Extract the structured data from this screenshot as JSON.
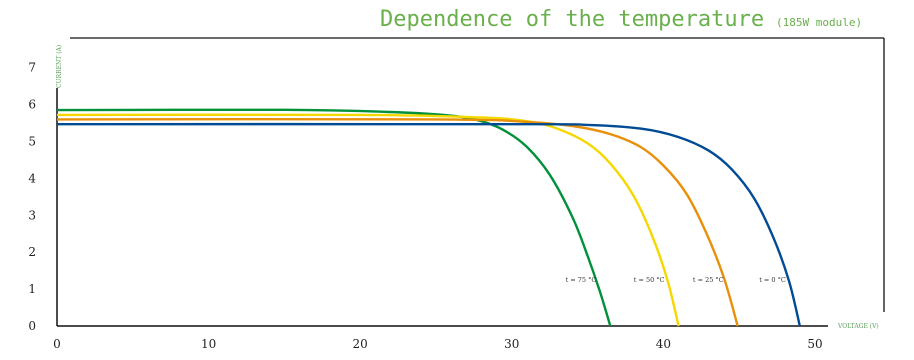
{
  "title": "Dependence of the temperature",
  "subtitle": "(185W module)",
  "colors": {
    "title": "#6ab04c",
    "axis_label": "#5aa05a",
    "frame": "#111111",
    "t75": "#00913a",
    "t50": "#f5d800",
    "t25": "#e8900a",
    "t0": "#004b93"
  },
  "chart_data": {
    "type": "line",
    "title": "Dependence of the temperature",
    "subtitle": "(185W module)",
    "xlabel": "VOLTAGE (V)",
    "ylabel": "CURRENT (A)",
    "xlim": [
      0,
      55
    ],
    "ylim": [
      0,
      7.5
    ],
    "x_ticks": [
      0,
      10,
      20,
      30,
      40,
      50
    ],
    "y_ticks": [
      0,
      1,
      2,
      3,
      4,
      5,
      6,
      7
    ],
    "grid": false,
    "series": [
      {
        "name": "t = 75 °C",
        "color": "#00913a",
        "x": [
          0,
          15,
          22,
          26,
          28,
          29.5,
          31,
          32.5,
          34,
          35,
          35.8,
          36.5
        ],
        "y": [
          5.85,
          5.86,
          5.8,
          5.7,
          5.55,
          5.3,
          4.85,
          4.1,
          2.95,
          1.9,
          0.95,
          0
        ]
      },
      {
        "name": "t = 50 °C",
        "color": "#f5d800",
        "x": [
          0,
          20,
          28,
          31,
          33,
          35,
          36.5,
          38,
          39.3,
          40.3,
          41
        ],
        "y": [
          5.72,
          5.72,
          5.65,
          5.55,
          5.35,
          4.95,
          4.4,
          3.55,
          2.4,
          1.2,
          0
        ]
      },
      {
        "name": "t = 25 °C",
        "color": "#e8900a",
        "x": [
          0,
          25,
          31,
          34,
          36.5,
          38.5,
          40,
          41.5,
          42.8,
          44,
          44.9
        ],
        "y": [
          5.6,
          5.6,
          5.53,
          5.42,
          5.2,
          4.85,
          4.35,
          3.6,
          2.55,
          1.3,
          0
        ]
      },
      {
        "name": "t = 0 °C",
        "color": "#004b93",
        "x": [
          0,
          30,
          35,
          38.5,
          41,
          43,
          44.5,
          46,
          47.3,
          48.3,
          49
        ],
        "y": [
          5.47,
          5.47,
          5.45,
          5.35,
          5.12,
          4.75,
          4.25,
          3.45,
          2.35,
          1.2,
          0
        ]
      }
    ]
  }
}
